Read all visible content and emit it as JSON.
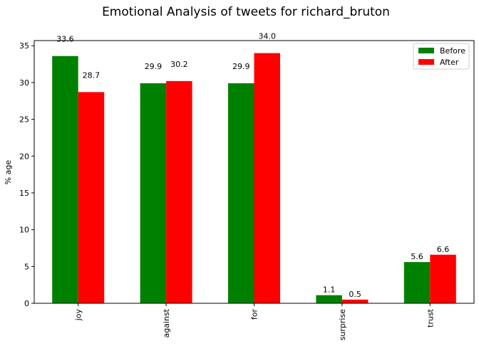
{
  "chart_data": {
    "type": "bar",
    "title": "Emotional Analysis of tweets for richard_bruton",
    "xlabel": "",
    "ylabel": "% age",
    "ylim": [
      0,
      35.7
    ],
    "yticks": [
      0,
      5,
      10,
      15,
      20,
      25,
      30,
      35
    ],
    "categories": [
      "joy",
      "against",
      "for",
      "surprise",
      "trust"
    ],
    "series": [
      {
        "name": "Before",
        "color": "#008000",
        "values": [
          33.6,
          29.9,
          29.9,
          1.1,
          5.6
        ]
      },
      {
        "name": "After",
        "color": "#ff0000",
        "values": [
          28.7,
          30.2,
          34.0,
          0.5,
          6.6
        ]
      }
    ],
    "legend": "top-right",
    "grid": false
  }
}
